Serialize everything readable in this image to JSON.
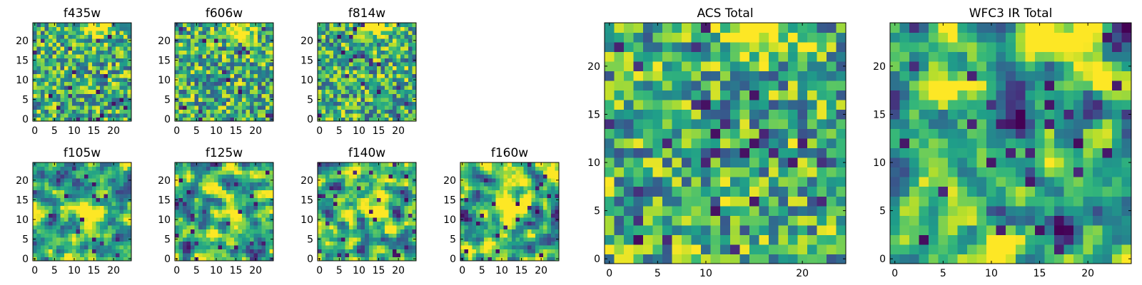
{
  "figure": {
    "colormap": "viridis",
    "pixel_grid": [
      25,
      25
    ]
  },
  "chart_data": [
    {
      "type": "heatmap",
      "title": "f435w",
      "shape": [
        25,
        25
      ],
      "xlim": [
        0,
        24
      ],
      "ylim": [
        0,
        24
      ],
      "xticks": [
        0,
        5,
        10,
        15,
        20
      ],
      "yticks": [
        0,
        5,
        10,
        15,
        20
      ],
      "colormap": "viridis",
      "xticklabels": [
        "0",
        "5",
        "10",
        "15",
        "20"
      ],
      "yticklabels": [
        "0",
        "5",
        "10",
        "15",
        "20"
      ],
      "pattern": "noise",
      "bright_region": "top-center"
    },
    {
      "type": "heatmap",
      "title": "f606w",
      "shape": [
        25,
        25
      ],
      "xlim": [
        0,
        24
      ],
      "ylim": [
        0,
        24
      ],
      "xticks": [
        0,
        5,
        10,
        15,
        20
      ],
      "yticks": [
        0,
        5,
        10,
        15,
        20
      ],
      "colormap": "viridis",
      "xticklabels": [
        "0",
        "5",
        "10",
        "15",
        "20"
      ],
      "yticklabels": [
        "0",
        "5",
        "10",
        "15",
        "20"
      ],
      "pattern": "noise",
      "bright_region": "top-center"
    },
    {
      "type": "heatmap",
      "title": "f814w",
      "shape": [
        25,
        25
      ],
      "xlim": [
        0,
        24
      ],
      "ylim": [
        0,
        24
      ],
      "xticks": [
        0,
        5,
        10,
        15,
        20
      ],
      "yticks": [
        0,
        5,
        10,
        15,
        20
      ],
      "colormap": "viridis",
      "xticklabels": [
        "0",
        "5",
        "10",
        "15",
        "20"
      ],
      "yticklabels": [
        "0",
        "5",
        "10",
        "15",
        "20"
      ],
      "pattern": "noise",
      "bright_region": "top-center"
    },
    {
      "type": "heatmap",
      "title": "f105w",
      "shape": [
        25,
        25
      ],
      "xlim": [
        0,
        24
      ],
      "ylim": [
        0,
        24
      ],
      "xticks": [
        0,
        5,
        10,
        15,
        20
      ],
      "yticks": [
        0,
        5,
        10,
        15,
        20
      ],
      "colormap": "viridis",
      "xticklabels": [
        "0",
        "5",
        "10",
        "15",
        "20"
      ],
      "yticklabels": [
        "0",
        "5",
        "10",
        "15",
        "20"
      ],
      "pattern": "smooth-noise",
      "bright_region": "center"
    },
    {
      "type": "heatmap",
      "title": "f125w",
      "shape": [
        25,
        25
      ],
      "xlim": [
        0,
        24
      ],
      "ylim": [
        0,
        24
      ],
      "xticks": [
        0,
        5,
        10,
        15,
        20
      ],
      "yticks": [
        0,
        5,
        10,
        15,
        20
      ],
      "colormap": "viridis",
      "xticklabels": [
        "0",
        "5",
        "10",
        "15",
        "20"
      ],
      "yticklabels": [
        "0",
        "5",
        "10",
        "15",
        "20"
      ],
      "pattern": "smooth-noise",
      "bright_region": "center"
    },
    {
      "type": "heatmap",
      "title": "f140w",
      "shape": [
        25,
        25
      ],
      "xlim": [
        0,
        24
      ],
      "ylim": [
        0,
        24
      ],
      "xticks": [
        0,
        5,
        10,
        15,
        20
      ],
      "yticks": [
        0,
        5,
        10,
        15,
        20
      ],
      "colormap": "viridis",
      "xticklabels": [
        "0",
        "5",
        "10",
        "15",
        "20"
      ],
      "yticklabels": [
        "0",
        "5",
        "10",
        "15",
        "20"
      ],
      "pattern": "smooth-noise",
      "bright_region": "center"
    },
    {
      "type": "heatmap",
      "title": "f160w",
      "shape": [
        25,
        25
      ],
      "xlim": [
        0,
        24
      ],
      "ylim": [
        0,
        24
      ],
      "xticks": [
        0,
        5,
        10,
        15,
        20
      ],
      "yticks": [
        0,
        5,
        10,
        15,
        20
      ],
      "colormap": "viridis",
      "xticklabels": [
        "0",
        "5",
        "10",
        "15",
        "20"
      ],
      "yticklabels": [
        "0",
        "5",
        "10",
        "15",
        "20"
      ],
      "pattern": "smooth-noise",
      "bright_region": "center"
    },
    {
      "type": "heatmap",
      "title": "ACS Total",
      "shape": [
        25,
        25
      ],
      "xlim": [
        0,
        24
      ],
      "ylim": [
        0,
        24
      ],
      "xticks": [
        0,
        5,
        10,
        20
      ],
      "yticks": [
        0,
        5,
        10,
        15,
        20
      ],
      "colormap": "viridis",
      "xticklabels": [
        "0",
        "5",
        "10",
        "20"
      ],
      "yticklabels": [
        "0",
        "5",
        "10",
        "15",
        "20"
      ],
      "pattern": "noise",
      "bright_region": "top-center"
    },
    {
      "type": "heatmap",
      "title": "WFC3 IR Total",
      "shape": [
        25,
        25
      ],
      "xlim": [
        0,
        24
      ],
      "ylim": [
        0,
        24
      ],
      "xticks": [
        0,
        5,
        10,
        15,
        20
      ],
      "yticks": [
        0,
        5,
        10,
        15,
        20
      ],
      "colormap": "viridis",
      "xticklabels": [
        "0",
        "5",
        "10",
        "15",
        "20"
      ],
      "yticklabels": [
        "0",
        "5",
        "10",
        "15",
        "20"
      ],
      "pattern": "smooth-noise",
      "bright_region": "top-center"
    }
  ]
}
